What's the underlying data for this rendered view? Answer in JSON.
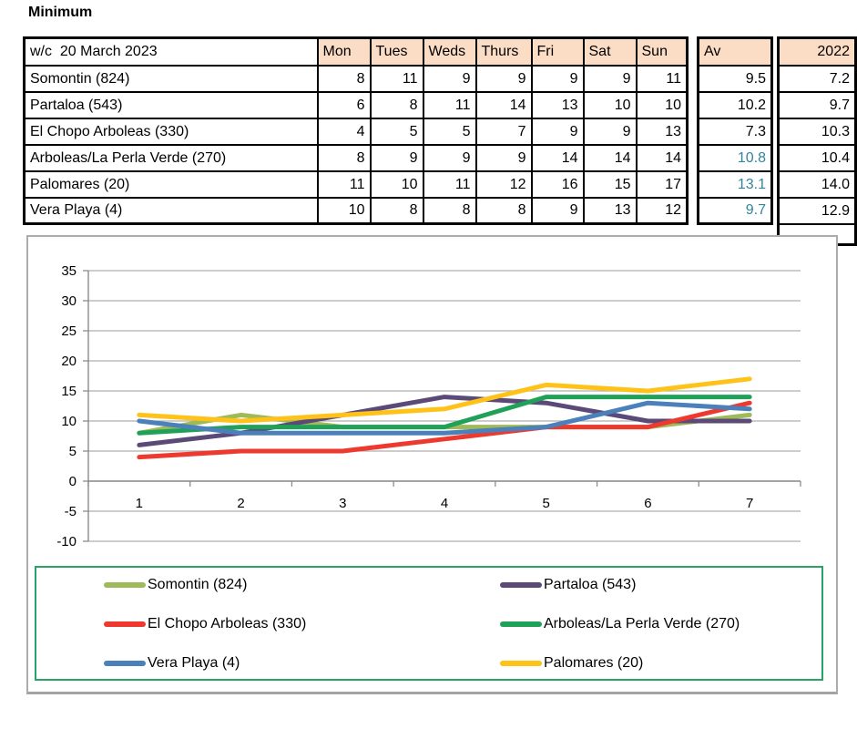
{
  "title": "Minimum",
  "table": {
    "corner_header": "w/c  20 March 2023",
    "day_headers": [
      "Mon",
      "Tues",
      "Weds",
      "Thurs",
      "Fri",
      "Sat",
      "Sun"
    ],
    "av_header": "Av",
    "year_header": "2022",
    "rows": [
      {
        "label": "Somontin (824)",
        "values": [
          8,
          11,
          9,
          9,
          9,
          9,
          11
        ],
        "av": "9.5",
        "av_teal": false,
        "year": "7.2"
      },
      {
        "label": "Partaloa (543)",
        "values": [
          6,
          8,
          11,
          14,
          13,
          10,
          10
        ],
        "av": "10.2",
        "av_teal": false,
        "year": "9.7"
      },
      {
        "label": "El Chopo Arboleas (330)",
        "values": [
          4,
          5,
          5,
          7,
          9,
          9,
          13
        ],
        "av": "7.3",
        "av_teal": false,
        "year": "10.3"
      },
      {
        "label": "Arboleas/La Perla Verde (270)",
        "values": [
          8,
          9,
          9,
          9,
          14,
          14,
          14
        ],
        "av": "10.8",
        "av_teal": true,
        "year": "10.4"
      },
      {
        "label": "Palomares (20)",
        "values": [
          11,
          10,
          11,
          12,
          16,
          15,
          17
        ],
        "av": "13.1",
        "av_teal": true,
        "year": "14.0"
      },
      {
        "label": "Vera Playa (4)",
        "values": [
          10,
          8,
          8,
          8,
          9,
          13,
          12
        ],
        "av": "9.7",
        "av_teal": true,
        "year": "12.9"
      }
    ],
    "header_bg": "#FBDCC5",
    "teal_text": "#31859C"
  },
  "chart_data": {
    "type": "line",
    "x": [
      "1",
      "2",
      "3",
      "4",
      "5",
      "6",
      "7"
    ],
    "series": [
      {
        "name": "Somontin (824)",
        "color": "#9FBA59",
        "values": [
          8,
          11,
          9,
          9,
          9,
          9,
          11
        ]
      },
      {
        "name": "Partaloa (543)",
        "color": "#5B4A78",
        "values": [
          6,
          8,
          11,
          14,
          13,
          10,
          10
        ]
      },
      {
        "name": "El Chopo Arboleas (330)",
        "color": "#EE3A2E",
        "values": [
          4,
          5,
          5,
          7,
          9,
          9,
          13
        ]
      },
      {
        "name": "Arboleas/La Perla Verde (270)",
        "color": "#1FA257",
        "values": [
          8,
          9,
          9,
          9,
          14,
          14,
          14
        ]
      },
      {
        "name": "Vera Playa (4)",
        "color": "#4C80BA",
        "values": [
          10,
          8,
          8,
          8,
          9,
          13,
          12
        ]
      },
      {
        "name": "Palomares (20)",
        "color": "#FEC218",
        "values": [
          11,
          10,
          11,
          12,
          16,
          15,
          17
        ]
      }
    ],
    "title": "",
    "xlabel": "",
    "ylabel": "",
    "ylim": [
      -10,
      35
    ],
    "ytick_step": 5,
    "grid": true,
    "gridline_color": "#AFAFAF",
    "axis_color": "#8C8C8C",
    "legend_position": "bottom",
    "legend_border_color": "#2AA366",
    "legend_layout": [
      [
        "Somontin (824)",
        "Partaloa (543)"
      ],
      [
        "El Chopo Arboleas (330)",
        "Arboleas/La Perla Verde (270)"
      ],
      [
        "Vera Playa (4)",
        "Palomares (20)"
      ]
    ]
  }
}
